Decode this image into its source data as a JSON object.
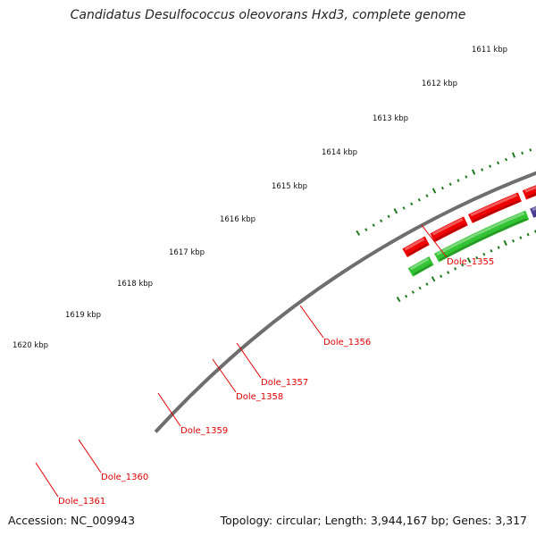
{
  "title": "Candidatus Desulfococcus oleovorans Hxd3, complete genome",
  "footer": {
    "accession": "Accession: NC_009943",
    "summary": "Topology: circular; Length: 3,944,167 bp; Genes: 3,317"
  },
  "colors": {
    "backbone": "#6e6e6e",
    "forward": "#ee0000",
    "cyan": "#19c9c9",
    "green": "#33c433",
    "purple": "#4b3f93",
    "gray": "#b8b8b8",
    "label": "#e00000",
    "ticks": "#1f7a1f"
  },
  "scale_labels": [
    "1611 kbp",
    "1612 kbp",
    "1613 kbp",
    "1614 kbp",
    "1615 kbp",
    "1616 kbp",
    "1617 kbp",
    "1618 kbp",
    "1619 kbp",
    "1620 kbp"
  ],
  "gene_labels": [
    "Dole_1355",
    "Dole_1356",
    "Dole_1357",
    "Dole_1358",
    "Dole_1359",
    "Dole_1360",
    "Dole_1361"
  ]
}
